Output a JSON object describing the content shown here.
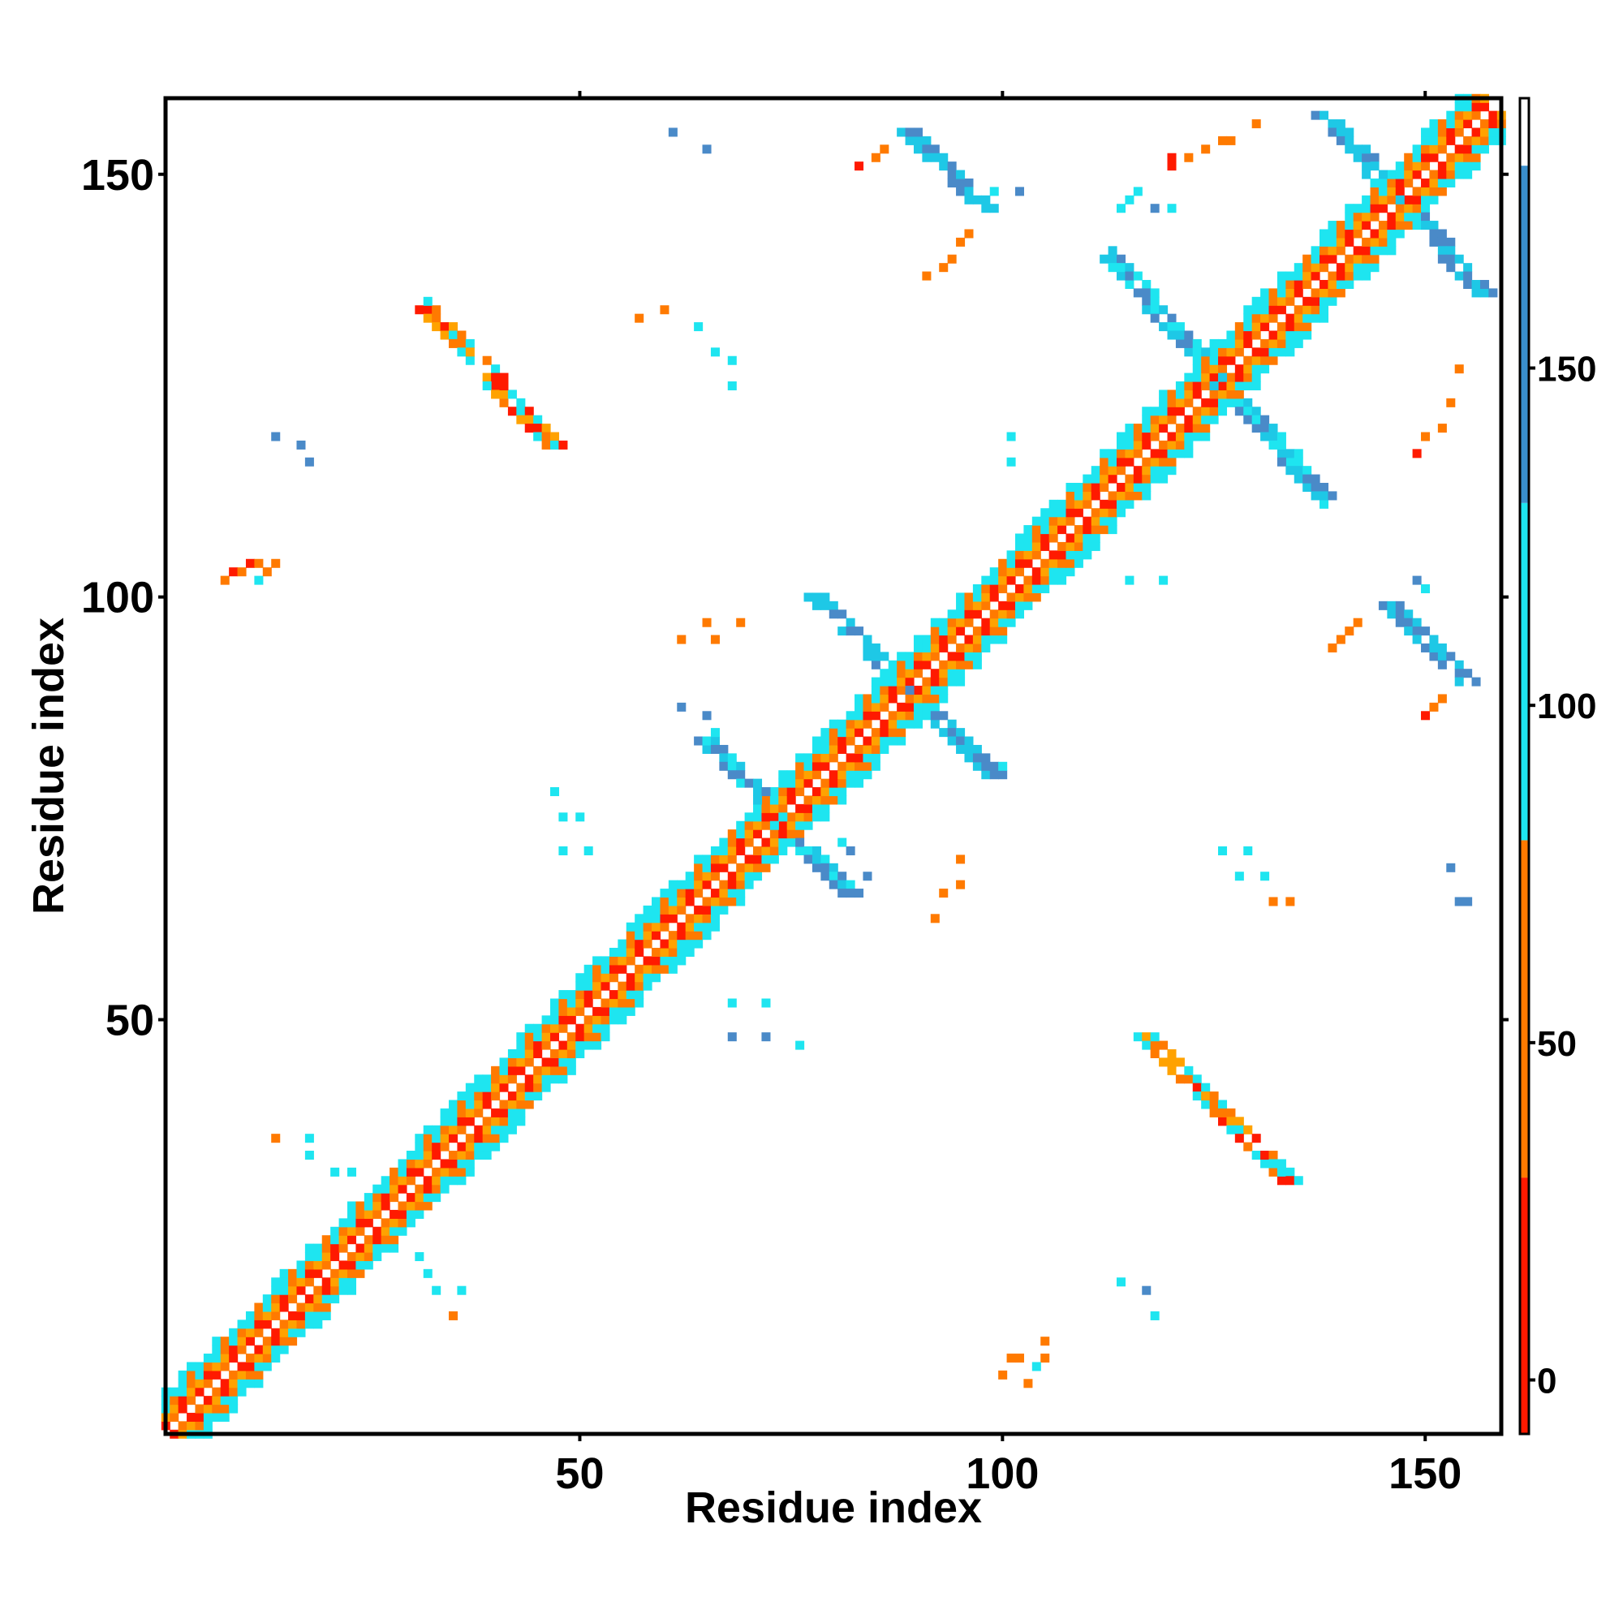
{
  "chart_data": {
    "type": "heatmap",
    "title": "",
    "xlabel": "Residue index",
    "ylabel": "Residue index",
    "xlim": [
      1,
      159
    ],
    "ylim": [
      1,
      159
    ],
    "x_ticks": [
      "50",
      "100",
      "150"
    ],
    "y_ticks": [
      "50",
      "100",
      "150"
    ],
    "grid": false,
    "colorbar": {
      "ticks": [
        "0",
        "50",
        "100",
        "150"
      ],
      "range": [
        -8,
        190
      ],
      "bands": [
        {
          "from": -8,
          "to": 30,
          "color": "#ff1a00"
        },
        {
          "from": 30,
          "to": 80,
          "color": "#ff7a00"
        },
        {
          "from": 80,
          "to": 130,
          "color": "#1ee5f0"
        },
        {
          "from": 130,
          "to": 180,
          "color": "#3a8fcc"
        },
        {
          "from": 180,
          "to": 190,
          "color": "#ffffff"
        }
      ]
    },
    "colors": {
      "red": "#ff1a00",
      "orange": "#ff7a00",
      "amber": "#ffa200",
      "cyan": "#1ee5f0",
      "sky": "#1ec8e6",
      "blue": "#4a8ac8"
    },
    "regions": [
      {
        "type": "diagonal",
        "from": 1,
        "to": 157,
        "palette": [
          "orange",
          "red",
          "amber",
          "cyan"
        ]
      },
      {
        "type": "antiparallel",
        "x": [
          32,
          47
        ],
        "y": [
          118,
          134
        ],
        "palette": [
          "orange",
          "red",
          "amber",
          "cyan"
        ]
      },
      {
        "type": "antiparallel",
        "x": [
          117,
          134
        ],
        "y": [
          31,
          48
        ],
        "palette": [
          "orange",
          "red",
          "amber",
          "cyan"
        ]
      },
      {
        "type": "antiparallel",
        "x": [
          89,
          98
        ],
        "y": [
          146,
          155
        ],
        "palette": [
          "blue",
          "sky"
        ]
      },
      {
        "type": "antiparallel",
        "x": [
          146,
          155
        ],
        "y": [
          90,
          99
        ],
        "palette": [
          "blue",
          "sky"
        ]
      },
      {
        "type": "antiparallel",
        "x": [
          138,
          157
        ],
        "y": [
          136,
          157
        ],
        "palette": [
          "blue",
          "sky"
        ]
      },
      {
        "type": "antiparallel",
        "x": [
          78,
          99
        ],
        "y": [
          79,
          100
        ],
        "palette": [
          "blue",
          "sky"
        ]
      },
      {
        "type": "antiparallel",
        "x": [
          65,
          82
        ],
        "y": [
          65,
          83
        ],
        "palette": [
          "sky",
          "cyan",
          "blue"
        ]
      },
      {
        "type": "antiparallel",
        "x": [
          113,
          138
        ],
        "y": [
          112,
          140
        ],
        "palette": [
          "sky",
          "cyan",
          "blue"
        ]
      }
    ],
    "points": [
      [
        8,
        102,
        "orange"
      ],
      [
        9,
        103,
        "red"
      ],
      [
        10,
        103,
        "orange"
      ],
      [
        11,
        104,
        "red"
      ],
      [
        12,
        102,
        "cyan"
      ],
      [
        12,
        104,
        "orange"
      ],
      [
        13,
        103,
        "orange"
      ],
      [
        14,
        104,
        "orange"
      ],
      [
        14,
        119,
        "blue"
      ],
      [
        17,
        118,
        "blue"
      ],
      [
        18,
        116,
        "blue"
      ],
      [
        14,
        36,
        "orange"
      ],
      [
        18,
        36,
        "cyan"
      ],
      [
        18,
        34,
        "cyan"
      ],
      [
        21,
        32,
        "cyan"
      ],
      [
        23,
        32,
        "cyan"
      ],
      [
        31,
        22,
        "cyan"
      ],
      [
        32,
        20,
        "cyan"
      ],
      [
        33,
        18,
        "cyan"
      ],
      [
        36,
        18,
        "cyan"
      ],
      [
        35,
        15,
        "orange"
      ],
      [
        47,
        77,
        "cyan"
      ],
      [
        48,
        74,
        "cyan"
      ],
      [
        50,
        74,
        "cyan"
      ],
      [
        48,
        70,
        "cyan"
      ],
      [
        51,
        70,
        "cyan"
      ],
      [
        68,
        52,
        "cyan"
      ],
      [
        72,
        52,
        "cyan"
      ],
      [
        68,
        48,
        "blue"
      ],
      [
        72,
        48,
        "blue"
      ],
      [
        76,
        47,
        "cyan"
      ],
      [
        57,
        133,
        "orange"
      ],
      [
        60,
        134,
        "orange"
      ],
      [
        64,
        132,
        "cyan"
      ],
      [
        66,
        129,
        "cyan"
      ],
      [
        68,
        128,
        "cyan"
      ],
      [
        68,
        125,
        "cyan"
      ],
      [
        61,
        155,
        "blue"
      ],
      [
        65,
        153,
        "blue"
      ],
      [
        83,
        151,
        "red"
      ],
      [
        85,
        152,
        "orange"
      ],
      [
        86,
        153,
        "orange"
      ],
      [
        91,
        138,
        "orange"
      ],
      [
        93,
        139,
        "orange"
      ],
      [
        94,
        140,
        "orange"
      ],
      [
        95,
        142,
        "orange"
      ],
      [
        96,
        143,
        "orange"
      ],
      [
        97,
        147,
        "cyan"
      ],
      [
        99,
        148,
        "cyan"
      ],
      [
        102,
        148,
        "blue"
      ],
      [
        101,
        119,
        "cyan"
      ],
      [
        101,
        116,
        "cyan"
      ],
      [
        62,
        95,
        "orange"
      ],
      [
        66,
        95,
        "orange"
      ],
      [
        65,
        97,
        "orange"
      ],
      [
        69,
        97,
        "orange"
      ],
      [
        62,
        87,
        "blue"
      ],
      [
        65,
        86,
        "blue"
      ],
      [
        66,
        84,
        "cyan"
      ],
      [
        82,
        70,
        "blue"
      ],
      [
        84,
        67,
        "blue"
      ],
      [
        81,
        71,
        "cyan"
      ],
      [
        92,
        62,
        "orange"
      ],
      [
        93,
        65,
        "orange"
      ],
      [
        95,
        66,
        "orange"
      ],
      [
        95,
        69,
        "orange"
      ],
      [
        100,
        80,
        "cyan"
      ],
      [
        99,
        80,
        "blue"
      ],
      [
        115,
        102,
        "cyan"
      ],
      [
        119,
        102,
        "cyan"
      ],
      [
        100,
        8,
        "orange"
      ],
      [
        101,
        10,
        "orange"
      ],
      [
        102,
        10,
        "orange"
      ],
      [
        103,
        7,
        "orange"
      ],
      [
        105,
        10,
        "orange"
      ],
      [
        105,
        12,
        "orange"
      ],
      [
        104,
        9,
        "cyan"
      ],
      [
        114,
        19,
        "cyan"
      ],
      [
        117,
        18,
        "blue"
      ],
      [
        118,
        15,
        "cyan"
      ],
      [
        126,
        70,
        "cyan"
      ],
      [
        129,
        70,
        "cyan"
      ],
      [
        128,
        67,
        "cyan"
      ],
      [
        131,
        67,
        "cyan"
      ],
      [
        132,
        64,
        "orange"
      ],
      [
        134,
        64,
        "orange"
      ],
      [
        139,
        94,
        "orange"
      ],
      [
        140,
        95,
        "orange"
      ],
      [
        141,
        96,
        "orange"
      ],
      [
        142,
        97,
        "orange"
      ],
      [
        149,
        102,
        "blue"
      ],
      [
        150,
        101,
        "cyan"
      ],
      [
        149,
        117,
        "red"
      ],
      [
        150,
        119,
        "orange"
      ],
      [
        152,
        120,
        "orange"
      ],
      [
        153,
        123,
        "orange"
      ],
      [
        154,
        127,
        "orange"
      ],
      [
        150,
        86,
        "red"
      ],
      [
        151,
        87,
        "orange"
      ],
      [
        152,
        88,
        "orange"
      ],
      [
        153,
        68,
        "blue"
      ],
      [
        154,
        64,
        "blue"
      ],
      [
        155,
        64,
        "blue"
      ],
      [
        120,
        151,
        "red"
      ],
      [
        120,
        152,
        "red"
      ],
      [
        122,
        152,
        "orange"
      ],
      [
        124,
        153,
        "orange"
      ],
      [
        126,
        154,
        "orange"
      ],
      [
        127,
        154,
        "orange"
      ],
      [
        130,
        156,
        "orange"
      ],
      [
        114,
        146,
        "cyan"
      ],
      [
        115,
        147,
        "cyan"
      ],
      [
        116,
        148,
        "cyan"
      ],
      [
        118,
        146,
        "blue"
      ],
      [
        120,
        146,
        "cyan"
      ]
    ]
  }
}
